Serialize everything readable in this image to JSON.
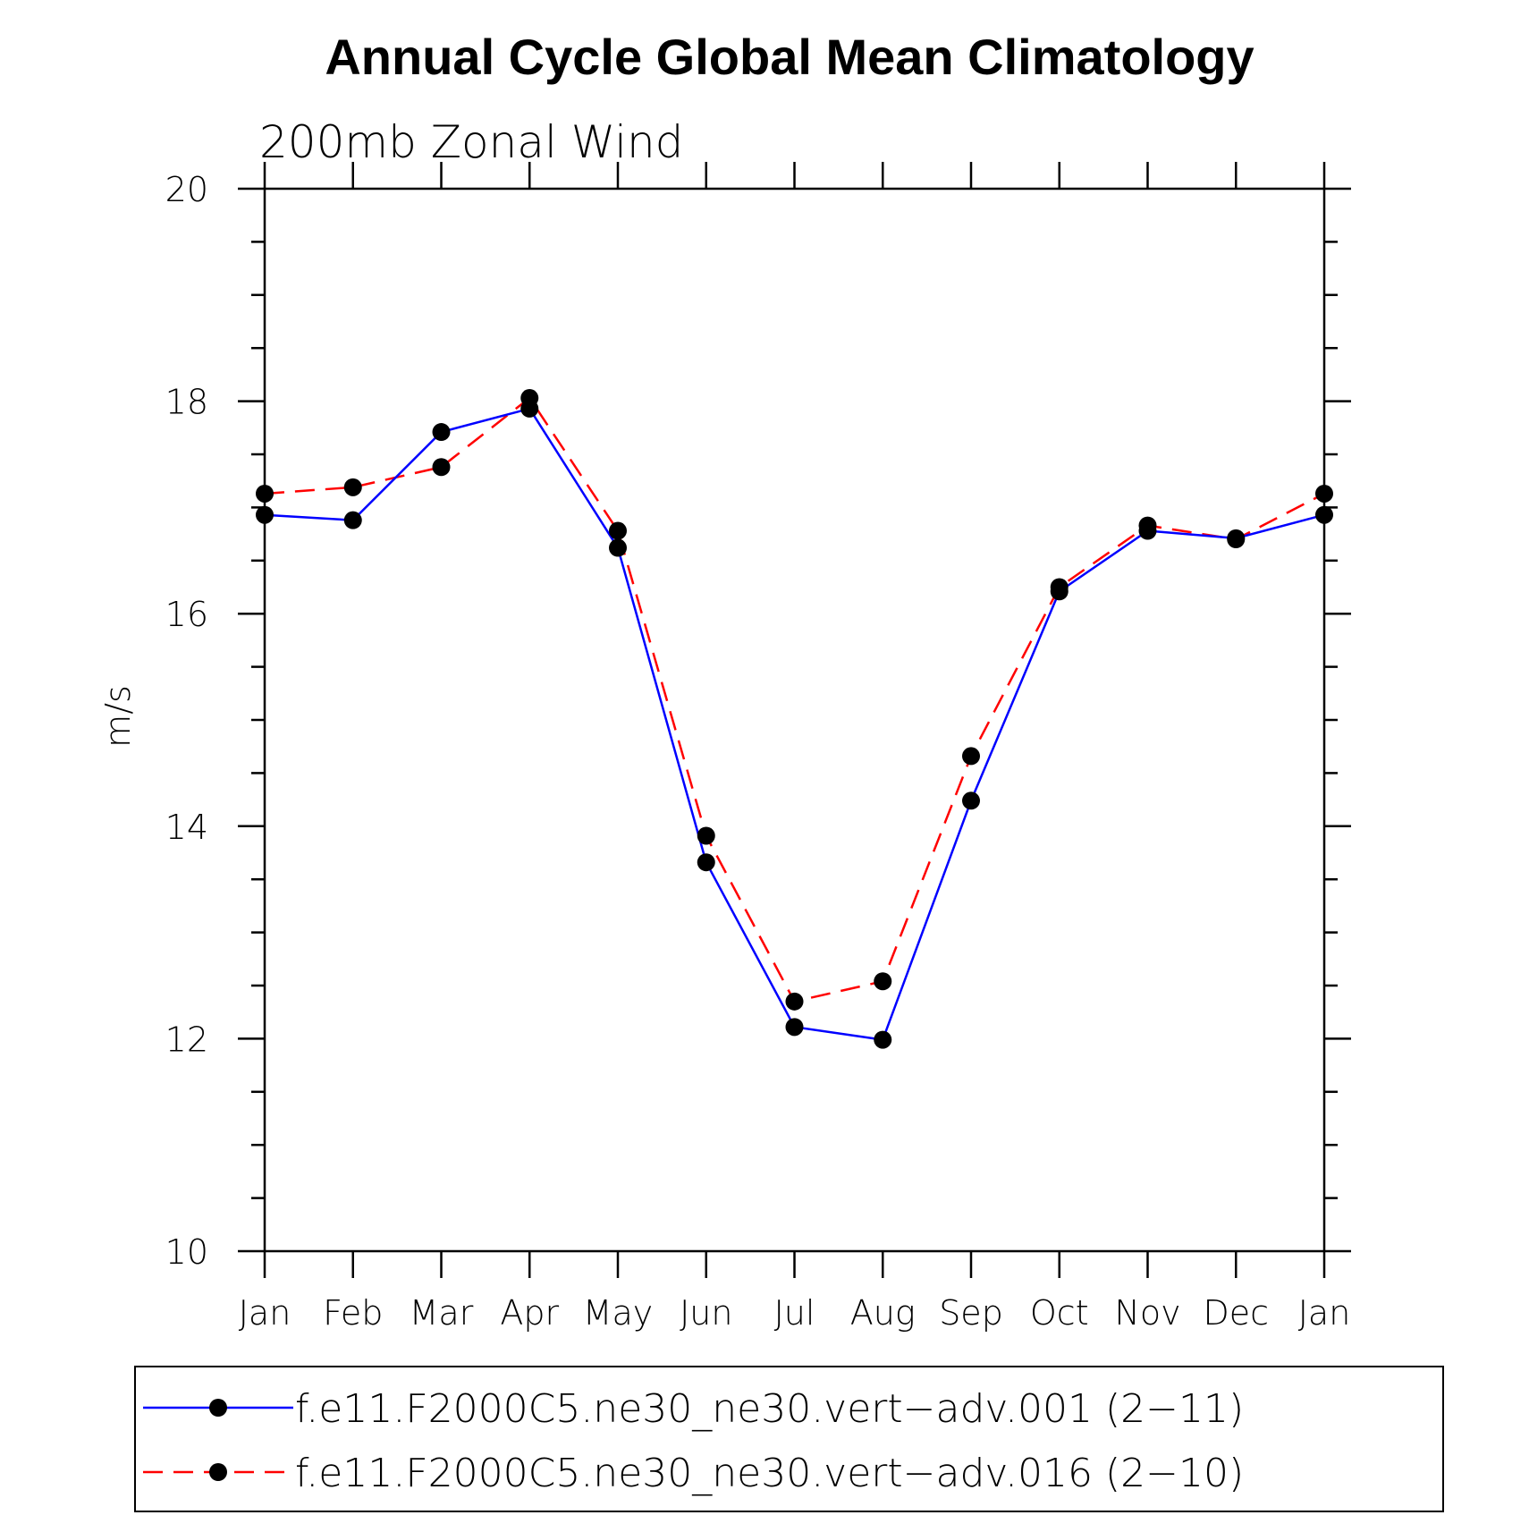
{
  "chart_data": {
    "type": "line",
    "title": "Annual Cycle Global Mean Climatology",
    "subtitle": "200mb Zonal Wind",
    "xlabel": "",
    "ylabel": "m/s",
    "categories": [
      "Jan",
      "Feb",
      "Mar",
      "Apr",
      "May",
      "Jun",
      "Jul",
      "Aug",
      "Sep",
      "Oct",
      "Nov",
      "Dec",
      "Jan"
    ],
    "ylim": [
      10,
      20
    ],
    "yticks": [
      "10",
      "12",
      "14",
      "16",
      "18",
      "20"
    ],
    "grid": false,
    "legend_position": "bottom",
    "series": [
      {
        "name": "f.e11.F2000C5.ne30_ne30.vert−adv.001 (2−11)",
        "color": "#0000ff",
        "line_style": "solid",
        "marker": "circle",
        "values": [
          16.93,
          16.88,
          17.71,
          17.93,
          16.62,
          13.66,
          12.11,
          11.99,
          14.24,
          16.21,
          16.78,
          16.71,
          16.93
        ]
      },
      {
        "name": "f.e11.F2000C5.ne30_ne30.vert−adv.016 (2−10)",
        "color": "#ff0000",
        "line_style": "dashed",
        "marker": "circle",
        "values": [
          17.13,
          17.19,
          17.38,
          18.03,
          16.78,
          13.91,
          12.35,
          12.54,
          14.66,
          16.25,
          16.83,
          16.7,
          17.13
        ]
      }
    ]
  }
}
